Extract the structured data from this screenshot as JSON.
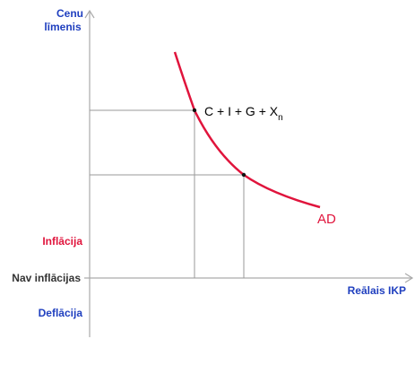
{
  "axes": {
    "y_label": [
      "Cenu",
      "līmenis"
    ],
    "x_label": "Reālais IKP"
  },
  "zones": {
    "inflation": "Inflācija",
    "no_inflation": "Nav inflācijas",
    "deflation": "Deflācija"
  },
  "curve": {
    "label": "AD",
    "point_label": {
      "text": "C + I + G + X",
      "subscript": "n"
    }
  }
}
